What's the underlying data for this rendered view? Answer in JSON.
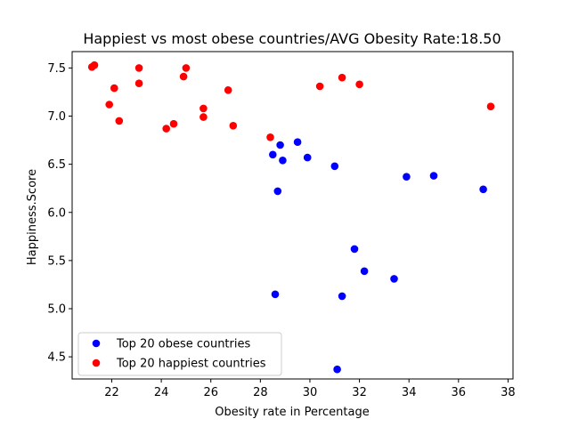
{
  "chart_data": {
    "type": "scatter",
    "title": "Happiest vs most obese countries/AVG Obesity Rate:18.50",
    "xlabel": "Obesity rate in Percentage",
    "ylabel": "Happiness.Score",
    "xlim": [
      20.4,
      38.2
    ],
    "ylim": [
      4.27,
      7.67
    ],
    "xticks": [
      22,
      24,
      26,
      28,
      30,
      32,
      34,
      36,
      38
    ],
    "yticks": [
      4.5,
      5.0,
      5.5,
      6.0,
      6.5,
      7.0,
      7.5
    ],
    "legend_position": "lower-left",
    "grid": false,
    "series": [
      {
        "name": "Top 20 obese countries",
        "color": "#0000ff",
        "points": [
          [
            28.8,
            6.7
          ],
          [
            29.5,
            6.73
          ],
          [
            28.5,
            6.6
          ],
          [
            28.9,
            6.54
          ],
          [
            29.9,
            6.57
          ],
          [
            31.0,
            6.48
          ],
          [
            28.7,
            6.22
          ],
          [
            33.9,
            6.37
          ],
          [
            35.0,
            6.38
          ],
          [
            37.0,
            6.24
          ],
          [
            31.8,
            5.62
          ],
          [
            32.2,
            5.39
          ],
          [
            33.4,
            5.31
          ],
          [
            28.6,
            5.15
          ],
          [
            31.3,
            5.13
          ],
          [
            31.1,
            4.37
          ]
        ]
      },
      {
        "name": "Top 20 happiest countries",
        "color": "#ff0000",
        "points": [
          [
            21.2,
            7.51
          ],
          [
            21.3,
            7.53
          ],
          [
            23.1,
            7.5
          ],
          [
            25.0,
            7.5
          ],
          [
            24.9,
            7.41
          ],
          [
            22.1,
            7.29
          ],
          [
            23.1,
            7.34
          ],
          [
            26.7,
            7.27
          ],
          [
            30.4,
            7.31
          ],
          [
            31.3,
            7.4
          ],
          [
            32.0,
            7.33
          ],
          [
            21.9,
            7.12
          ],
          [
            25.7,
            7.08
          ],
          [
            22.3,
            6.95
          ],
          [
            25.7,
            6.99
          ],
          [
            24.5,
            6.92
          ],
          [
            24.2,
            6.87
          ],
          [
            26.9,
            6.9
          ],
          [
            28.4,
            6.78
          ],
          [
            37.3,
            7.1
          ]
        ]
      }
    ]
  }
}
